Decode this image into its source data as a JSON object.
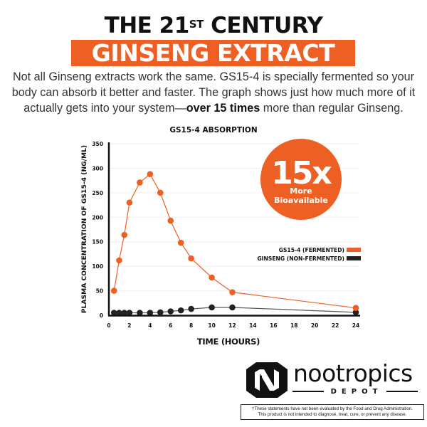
{
  "header": {
    "line1_pre": "THE 21",
    "line1_sup": "ST",
    "line1_post": " CENTURY",
    "banner": "GINSENG EXTRACT",
    "intro_pre": "Not all Ginseng extracts work the same. GS15-4 is specially fermented so your body can absorb it better and faster. The graph shows just how much more of it actually gets into your system—",
    "intro_bold": "over 15 times",
    "intro_post": " more than regular Ginseng."
  },
  "colors": {
    "accent": "#ee5f24",
    "dark": "#222222",
    "grid": "#eeeeee"
  },
  "badge": {
    "big": "15x",
    "line1": "More",
    "line2": "Bioavailable"
  },
  "chart_data": {
    "type": "line",
    "title": "GS15-4 ABSORPTION",
    "xlabel": "TIME (HOURS)",
    "ylabel": "PLASMA CONCENTRATION OF GS15-4 (NG/ML)",
    "xlim": [
      0,
      24
    ],
    "ylim": [
      0,
      350
    ],
    "xticks": [
      0,
      2,
      4,
      6,
      8,
      10,
      12,
      14,
      16,
      18,
      20,
      22,
      24
    ],
    "yticks": [
      0,
      50,
      100,
      150,
      200,
      250,
      300,
      350
    ],
    "grid": true,
    "legend_position": "right, middle",
    "series": [
      {
        "name": "GS15-4 (FERMENTED)",
        "color": "#ee5f24",
        "x": [
          0.5,
          1,
          1.5,
          2,
          3,
          4,
          5,
          6,
          7,
          8,
          10,
          12,
          24
        ],
        "y": [
          50,
          112,
          164,
          230,
          271,
          288,
          250,
          193,
          148,
          116,
          77,
          47,
          15
        ]
      },
      {
        "name": "GINSENG (NON-FERMENTED)",
        "color": "#222222",
        "x": [
          0.5,
          1,
          1.5,
          2,
          3,
          4,
          5,
          6,
          7,
          8,
          10,
          12,
          24
        ],
        "y": [
          5,
          5,
          5,
          5,
          5,
          5,
          6,
          8,
          10,
          13,
          16,
          16,
          6
        ]
      }
    ]
  },
  "brand": {
    "name": "nootropics",
    "sub": "DEPOT"
  },
  "disclaimer": {
    "line1": "†These statements have not been evaluated by the Food and Drug Administration.",
    "line2": "This product is not intended to diagnose, treat, cure, or prevent any disease."
  }
}
